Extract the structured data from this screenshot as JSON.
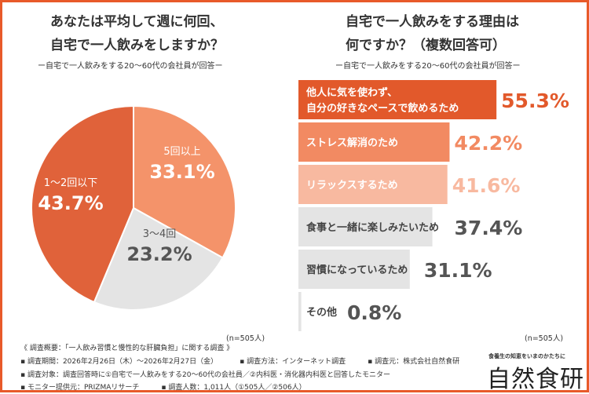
{
  "left": {
    "title_line1": "あなたは平均して週に何回、",
    "title_line2": "自宅で一人飲みをしますか？",
    "subtitle": "ー自宅で一人飲みをする20〜60代の会社員が回答ー",
    "n_label": "(n=505人)"
  },
  "right": {
    "title_line1": "自宅で一人飲みをする理由は",
    "title_line2": "何ですか？（複数回答可）",
    "subtitle": "ー自宅で一人飲みをする20〜60代の会社員が回答ー",
    "n_label": "(n=505人)"
  },
  "chart_data": [
    {
      "type": "pie",
      "slices": [
        {
          "label": "5回以上",
          "value": 33.1,
          "value_label": "33.1%",
          "color": "#f4936a"
        },
        {
          "label": "3〜4回",
          "value": 23.2,
          "value_label": "23.2%",
          "color": "#e4e4e4"
        },
        {
          "label": "1〜2回以下",
          "value": 43.7,
          "value_label": "43.7%",
          "color": "#e0623a"
        }
      ]
    },
    {
      "type": "bar",
      "orientation": "horizontal",
      "categories": [
        "他人に気を使わず、\n自分の好きなペースで飲めるため",
        "ストレス解消のため",
        "リラックスするため",
        "食事と一緒に楽しみたいため",
        "習慣になっているため",
        "その他"
      ],
      "values": [
        55.3,
        42.2,
        41.6,
        37.4,
        31.1,
        0.8
      ],
      "value_labels": [
        "55.3%",
        "42.2%",
        "41.6%",
        "37.4%",
        "31.1%",
        "0.8%"
      ],
      "bar_colors": [
        "#e2592b",
        "#f28a62",
        "#f8b9a0",
        "#e4e4e4",
        "#e4e4e4",
        "#e4e4e4"
      ],
      "label_colors": [
        "#ffffff",
        "#ffffff",
        "#ffffff",
        "#444444",
        "#444444",
        "#444444"
      ],
      "value_colors": [
        "#e2592b",
        "#f28a62",
        "#f8b9a0",
        "#555555",
        "#555555",
        "#555555"
      ]
    }
  ],
  "footer": {
    "heading": "《 調査概要：「一人飲み習慣と慢性的な肝臓負担」に関する調査 》",
    "period": "▪ 調査期間：2026年2月26日（木）〜2026年2月27日（金）",
    "method": "▪ 調査方法：インターネット調査",
    "source": "▪ 調査元：株式会社自然食研",
    "target": "▪ 調査対象：調査回答時に①自宅で一人飲みをする20〜60代の会社員／②内科医・消化器内科医と回答したモニター",
    "provider": "▪ モニター提供元：PRIZMAリサーチ",
    "count": "▪ 調査人数：1,011人（①505人／②506人）"
  },
  "logo": {
    "tagline": "食養生の知恵をいまのかたちに",
    "name": "自然食研"
  },
  "colors": {
    "border": "#e85a2a"
  }
}
